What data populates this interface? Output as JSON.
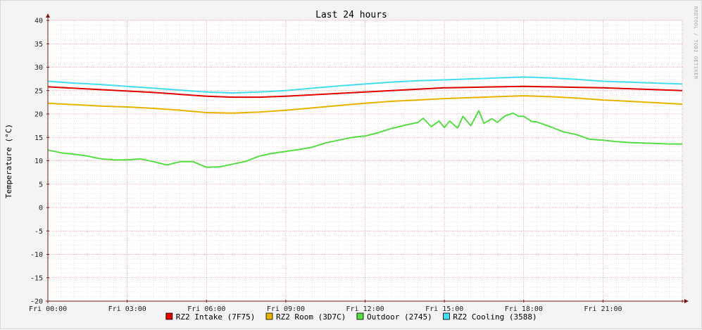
{
  "chart_data": {
    "type": "line",
    "title": "Last 24 hours",
    "ylabel": "Temperature (°C)",
    "xlabel": "",
    "watermark": "RRDTOOL / TOBI OETIKER",
    "ylim": [
      -20,
      40
    ],
    "xlim": [
      0,
      24
    ],
    "yticks": [
      "40",
      "35",
      "30",
      "25",
      "20",
      "15",
      "10",
      "5",
      "0",
      "-5",
      "-10",
      "-15",
      "-20"
    ],
    "xticks": [
      "Fri 00:00",
      "Fri 03:00",
      "Fri 06:00",
      "Fri 09:00",
      "Fri 12:00",
      "Fri 15:00",
      "Fri 18:00",
      "Fri 21:00"
    ],
    "colors": {
      "background": "#ffffff",
      "canvas": "#f3f3f3",
      "grid_major": "#e8a0a0",
      "grid_minor": "#e3c8c8",
      "axis": "#7a1a1a"
    },
    "grid": true,
    "legend_position": "bottom",
    "series": [
      {
        "name": "RZ2 Intake (7F75)",
        "color": "#e00000",
        "x": [
          0,
          1,
          2,
          3,
          4,
          5,
          6,
          7,
          8,
          9,
          10,
          11,
          12,
          13,
          14,
          15,
          16,
          17,
          18,
          19,
          20,
          21,
          22,
          23,
          24
        ],
        "values": [
          25.8,
          25.5,
          25.2,
          24.9,
          24.6,
          24.2,
          23.8,
          23.6,
          23.6,
          23.8,
          24.1,
          24.4,
          24.7,
          25.0,
          25.3,
          25.6,
          25.7,
          25.8,
          25.9,
          25.8,
          25.7,
          25.6,
          25.4,
          25.2,
          25.0
        ]
      },
      {
        "name": "RZ2 Room (3D7C)",
        "color": "#e6b400",
        "x": [
          0,
          1,
          2,
          3,
          4,
          5,
          6,
          7,
          8,
          9,
          10,
          11,
          12,
          13,
          14,
          15,
          16,
          17,
          18,
          19,
          20,
          21,
          22,
          23,
          24
        ],
        "values": [
          22.3,
          22.0,
          21.7,
          21.5,
          21.2,
          20.8,
          20.3,
          20.2,
          20.4,
          20.8,
          21.3,
          21.8,
          22.3,
          22.7,
          23.0,
          23.3,
          23.5,
          23.7,
          23.9,
          23.7,
          23.4,
          23.0,
          22.7,
          22.4,
          22.1
        ]
      },
      {
        "name": "Outdoor (2745)",
        "color": "#55dd44",
        "x": [
          0,
          0.5,
          1,
          1.5,
          2,
          2.5,
          3,
          3.5,
          4,
          4.5,
          5,
          5.5,
          6,
          6.5,
          7,
          7.5,
          8,
          8.5,
          9,
          9.5,
          10,
          10.5,
          11,
          11.5,
          12,
          12.5,
          13,
          13.5,
          14,
          14.2,
          14.5,
          14.8,
          15,
          15.2,
          15.5,
          15.7,
          16,
          16.3,
          16.5,
          16.8,
          17,
          17.3,
          17.6,
          17.8,
          18,
          18.3,
          18.5,
          19,
          19.5,
          20,
          20.5,
          21,
          21.5,
          22,
          22.5,
          23,
          23.5,
          24
        ],
        "values": [
          12.3,
          11.7,
          11.4,
          11.0,
          10.4,
          10.2,
          10.2,
          10.4,
          9.8,
          9.1,
          9.8,
          9.8,
          8.6,
          8.7,
          9.3,
          9.9,
          11.0,
          11.6,
          12.0,
          12.4,
          12.9,
          13.8,
          14.4,
          15.0,
          15.3,
          16.0,
          16.9,
          17.6,
          18.2,
          19.1,
          17.3,
          18.5,
          17.1,
          18.5,
          17.0,
          19.5,
          17.5,
          20.7,
          18.0,
          19.0,
          18.2,
          19.6,
          20.2,
          19.5,
          19.5,
          18.4,
          18.3,
          17.3,
          16.2,
          15.6,
          14.6,
          14.4,
          14.1,
          13.9,
          13.8,
          13.7,
          13.6,
          13.6
        ]
      },
      {
        "name": "RZ2 Cooling (3588)",
        "color": "#44ddee",
        "x": [
          0,
          1,
          2,
          3,
          4,
          5,
          6,
          7,
          8,
          9,
          10,
          11,
          12,
          13,
          14,
          15,
          16,
          17,
          18,
          19,
          20,
          21,
          22,
          23,
          24
        ],
        "values": [
          27.0,
          26.6,
          26.3,
          25.9,
          25.5,
          25.1,
          24.7,
          24.5,
          24.7,
          25.0,
          25.5,
          26.0,
          26.4,
          26.8,
          27.1,
          27.3,
          27.5,
          27.7,
          27.9,
          27.7,
          27.4,
          27.0,
          26.8,
          26.6,
          26.4
        ]
      }
    ]
  }
}
